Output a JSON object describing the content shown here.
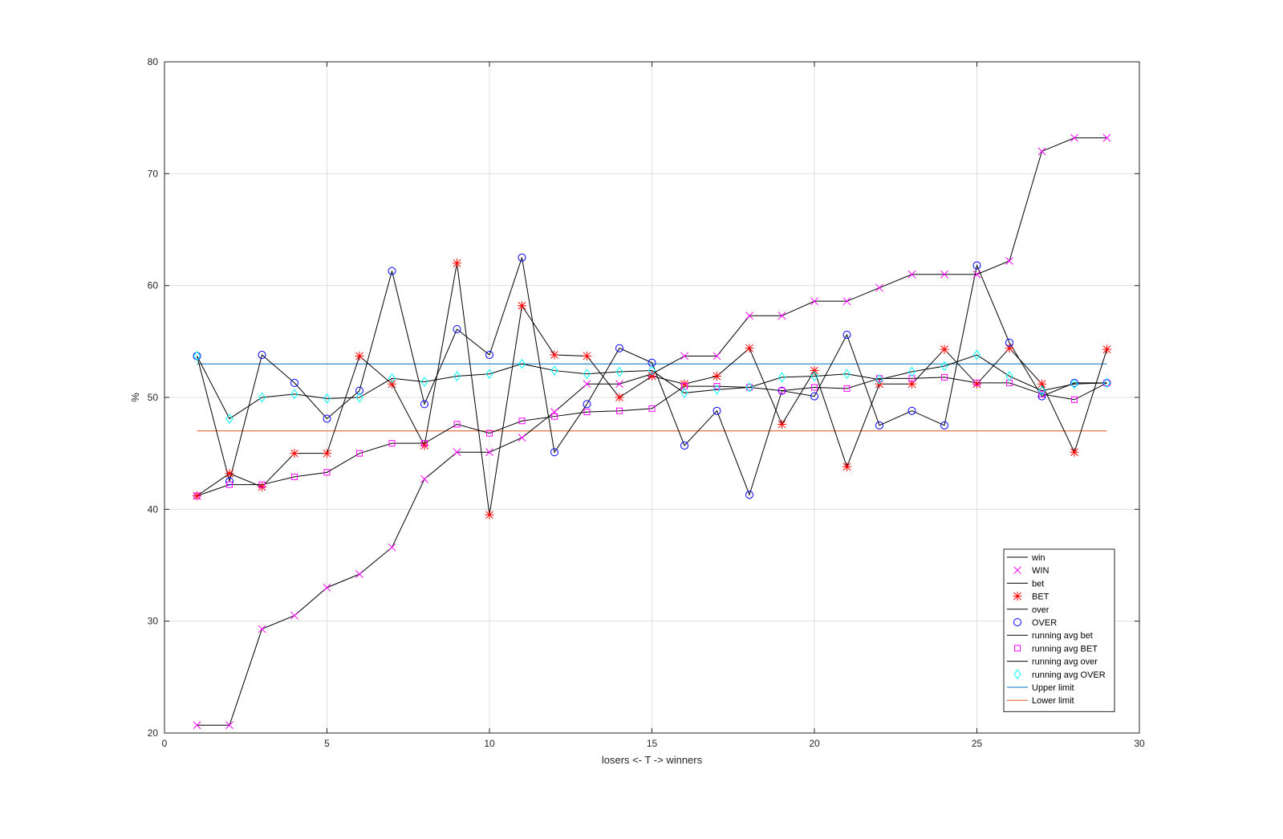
{
  "chart_data": {
    "type": "line",
    "xlabel": "losers <- T -> winners",
    "ylabel": "%",
    "xlim": [
      0,
      30
    ],
    "ylim": [
      20,
      80
    ],
    "xticks": [
      0,
      5,
      10,
      15,
      20,
      25,
      30
    ],
    "yticks": [
      20,
      30,
      40,
      50,
      60,
      70,
      80
    ],
    "grid": true,
    "legend_position": "bottom-right",
    "x": [
      1,
      2,
      3,
      4,
      5,
      6,
      7,
      8,
      9,
      10,
      11,
      12,
      13,
      14,
      15,
      16,
      17,
      18,
      19,
      20,
      21,
      22,
      23,
      24,
      25,
      26,
      27,
      28,
      29
    ],
    "series": [
      {
        "name": "win",
        "marker_name": "WIN",
        "marker": "x",
        "marker_color": "#ff00ff",
        "values": [
          20.7,
          20.7,
          29.3,
          30.5,
          33.0,
          34.2,
          36.6,
          42.7,
          45.1,
          45.1,
          46.4,
          48.7,
          51.2,
          51.2,
          52.1,
          53.7,
          53.7,
          57.3,
          57.3,
          58.6,
          58.6,
          59.8,
          61.0,
          61.0,
          61.0,
          62.2,
          72.0,
          73.2,
          73.2
        ]
      },
      {
        "name": "bet",
        "marker_name": "BET",
        "marker": "asterisk",
        "marker_color": "#ff0000",
        "values": [
          41.2,
          43.2,
          42.0,
          45.0,
          45.0,
          53.7,
          51.2,
          45.7,
          62.0,
          39.5,
          58.2,
          53.8,
          53.7,
          50.0,
          51.9,
          51.2,
          51.9,
          54.4,
          47.6,
          52.4,
          43.8,
          51.2,
          51.2,
          54.3,
          51.2,
          54.4,
          51.2,
          45.1,
          54.3
        ]
      },
      {
        "name": "over",
        "marker_name": "OVER",
        "marker": "circle",
        "marker_color": "#0000ff",
        "values": [
          53.7,
          42.5,
          53.8,
          51.3,
          48.1,
          50.6,
          61.3,
          49.4,
          56.1,
          53.8,
          62.5,
          45.1,
          49.4,
          54.4,
          53.1,
          45.7,
          48.8,
          41.3,
          50.6,
          50.1,
          55.6,
          47.5,
          48.8,
          47.5,
          61.8,
          54.9,
          50.1,
          51.3,
          51.3
        ]
      },
      {
        "name": "running avg bet",
        "marker_name": "running avg BET",
        "marker": "square",
        "marker_color": "#ff00ff",
        "values": [
          41.2,
          42.2,
          42.2,
          42.9,
          43.3,
          45.0,
          45.9,
          45.9,
          47.6,
          46.8,
          47.9,
          48.3,
          48.7,
          48.8,
          49.0,
          51.0,
          51.0,
          50.9,
          50.6,
          50.9,
          50.8,
          51.7,
          51.7,
          51.8,
          51.3,
          51.3,
          50.3,
          49.8,
          51.3
        ]
      },
      {
        "name": "running avg over",
        "marker_name": "running avg OVER",
        "marker": "diamond",
        "marker_color": "#00ffff",
        "values": [
          53.7,
          48.1,
          50.0,
          50.3,
          49.9,
          50.0,
          51.7,
          51.4,
          51.9,
          52.1,
          53.0,
          52.4,
          52.1,
          52.3,
          52.4,
          50.4,
          50.7,
          50.9,
          51.8,
          51.9,
          52.1,
          51.6,
          52.3,
          52.8,
          53.8,
          51.9,
          50.6,
          51.2,
          51.3
        ]
      }
    ],
    "reference_lines": [
      {
        "name": "Upper limit",
        "value": 53.0,
        "color": "#0072bd"
      },
      {
        "name": "Lower limit",
        "value": 47.0,
        "color": "#d95319"
      }
    ]
  }
}
